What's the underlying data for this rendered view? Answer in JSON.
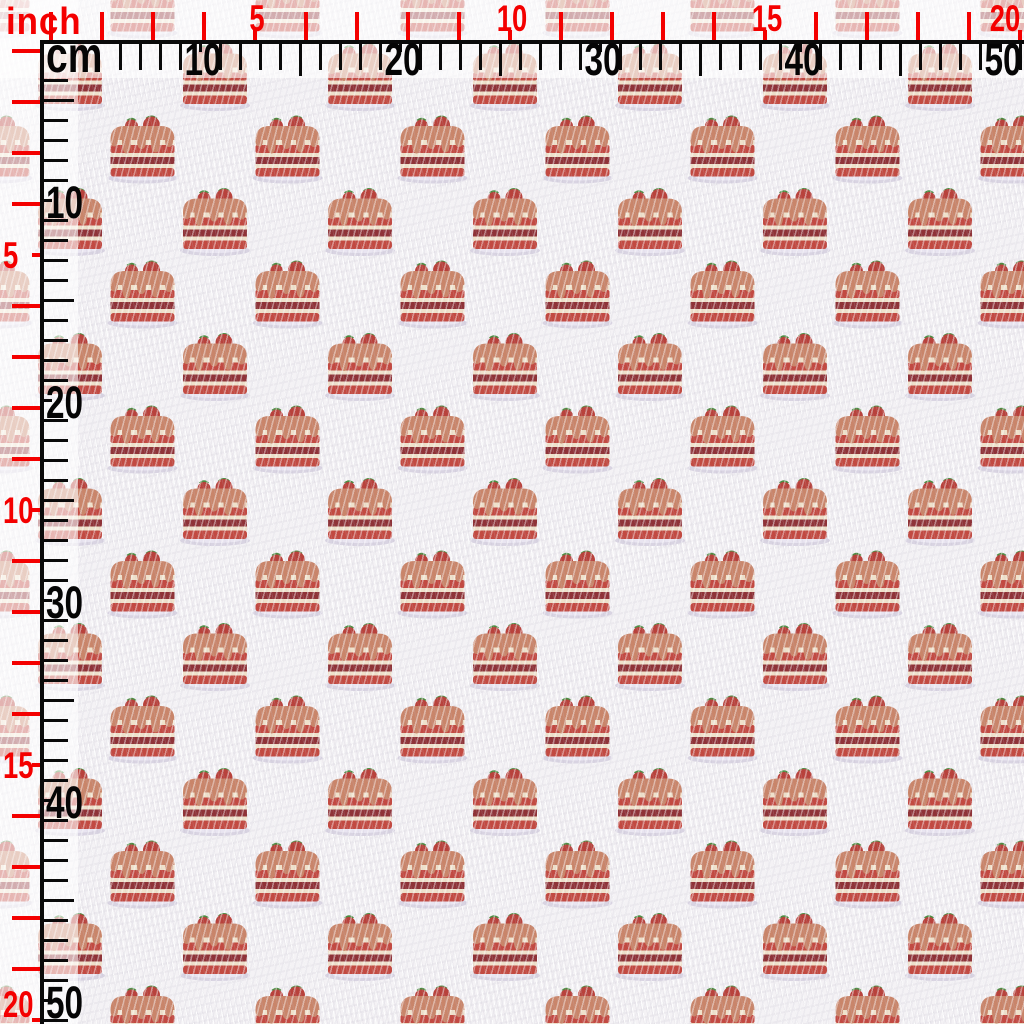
{
  "swatch": {
    "description": "white textured bullet fabric printed with repeating strawberry layer cakes",
    "fabric_base_color": "#f4f2f5"
  },
  "rulers": {
    "inch_label": "inch",
    "cm_label": "cm",
    "inch_color": "#f40000",
    "cm_color": "#000000",
    "top": {
      "cm_numbers": [
        "10",
        "20",
        "30",
        "40",
        "50"
      ],
      "inch_numbers": [
        "5",
        "10",
        "15",
        "20"
      ]
    },
    "left": {
      "cm_numbers": [
        "10",
        "20",
        "30",
        "40",
        "50"
      ],
      "inch_numbers": [
        "5",
        "10",
        "15",
        "20"
      ]
    }
  },
  "pattern": {
    "motif": "strawberry-cake-icon",
    "colors": {
      "frosting": "#c9856a",
      "cream": "#efe1cb",
      "red_stripe": "#c24a42",
      "dark_stripe": "#8f3338",
      "strawberry": "#b8423c",
      "leaf": "#4d8c43",
      "plate": "#d9d4e2"
    }
  }
}
